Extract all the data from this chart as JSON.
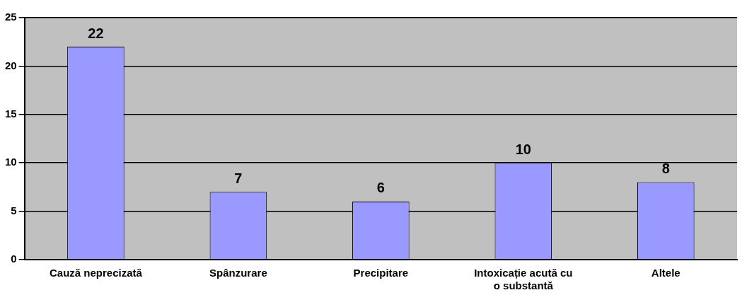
{
  "chart_data": {
    "type": "bar",
    "categories": [
      "Cauză neprecizată",
      "Spânzurare",
      "Precipitare",
      "Intoxicație acută cu o substantă",
      "Altele"
    ],
    "values": [
      22,
      7,
      6,
      10,
      8
    ],
    "color": "#9999ff",
    "ylim": [
      0,
      25
    ],
    "yticks": [
      0,
      5,
      10,
      15,
      20,
      25
    ],
    "grid": "y",
    "data_labels": true
  }
}
